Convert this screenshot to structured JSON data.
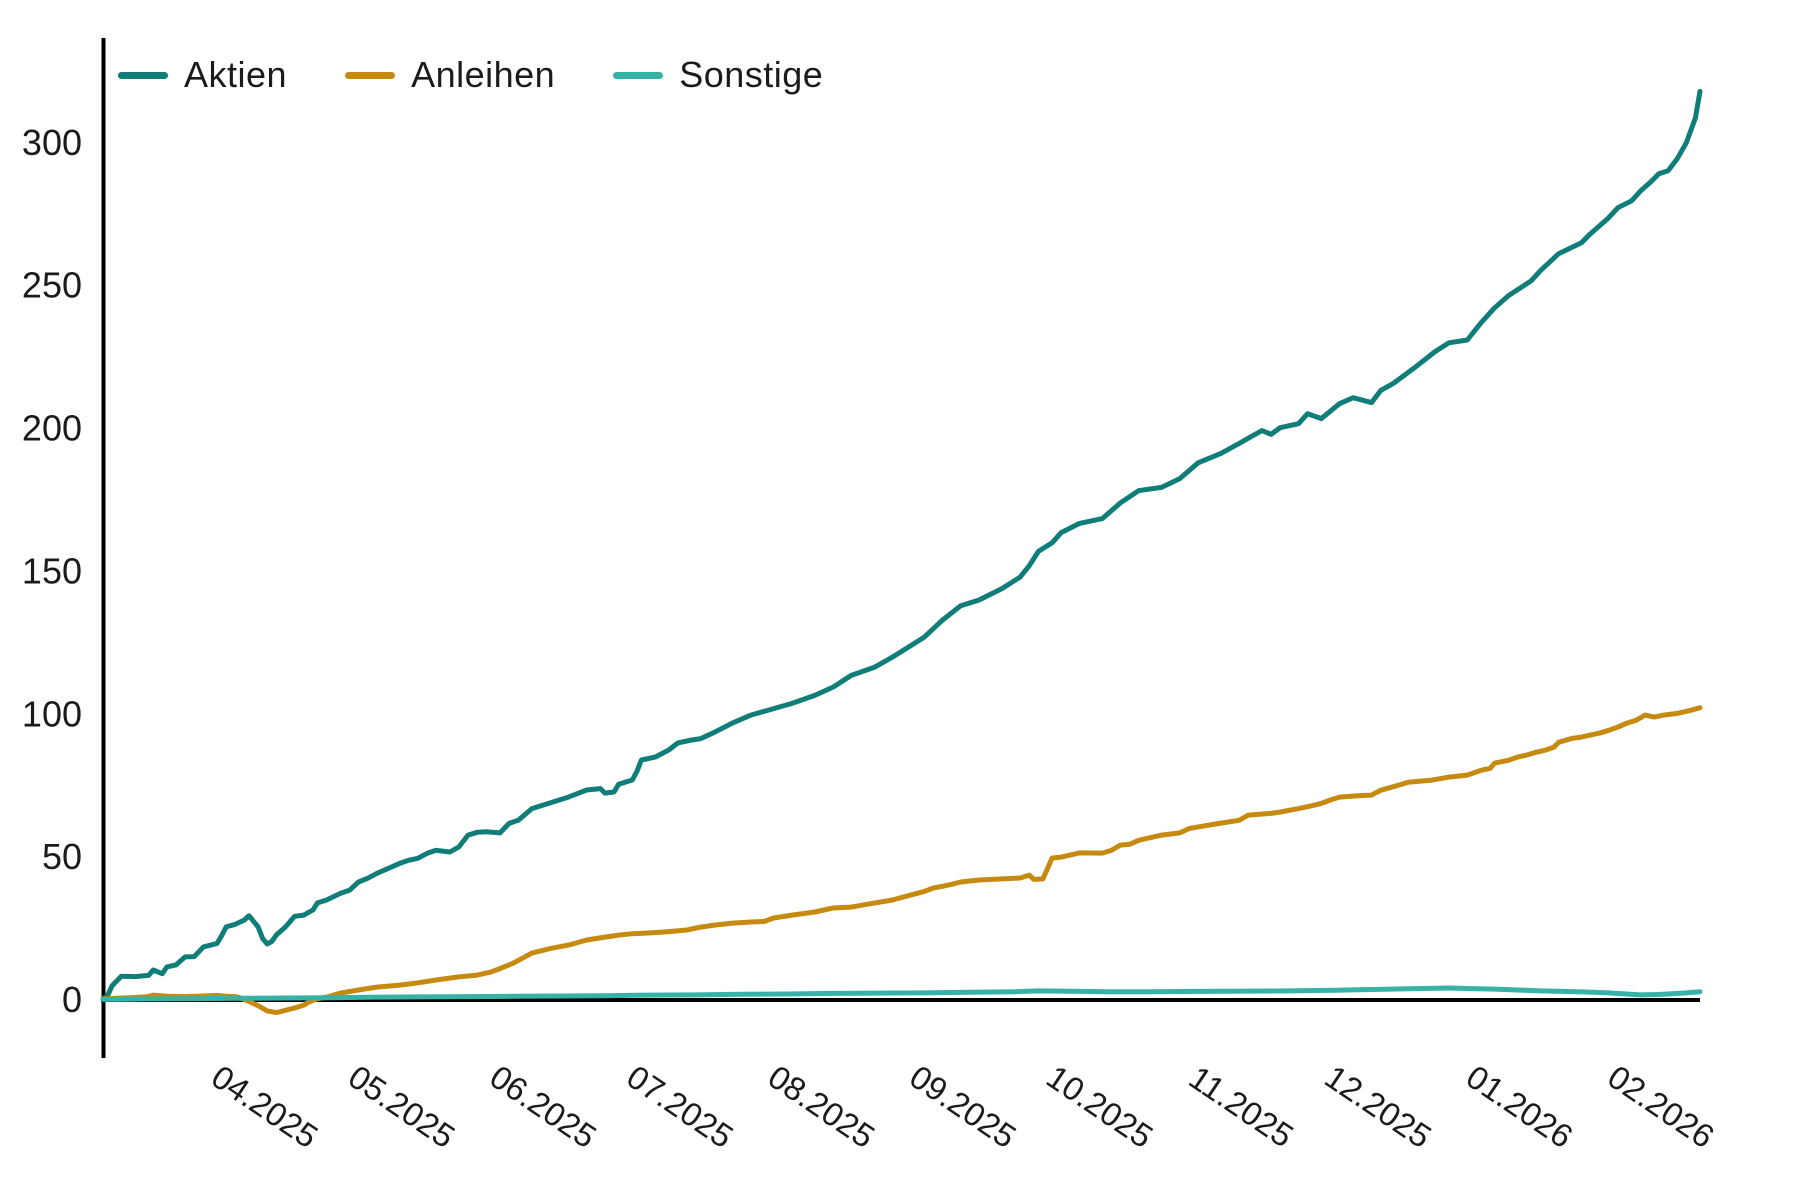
{
  "chart_data": {
    "type": "line",
    "title": "",
    "xlabel": "",
    "ylabel": "",
    "grid": false,
    "legend_position": "top-left",
    "x_unit": "days from start (03.2025)",
    "x_range_days": [
      0,
      350
    ],
    "ylim": [
      -21,
      340
    ],
    "y_ticks": [
      0,
      50,
      100,
      150,
      200,
      250,
      300
    ],
    "x_ticks": [
      {
        "label": "04.2025",
        "day": 31
      },
      {
        "label": "05.2025",
        "day": 61
      },
      {
        "label": "06.2025",
        "day": 92
      },
      {
        "label": "07.2025",
        "day": 122
      },
      {
        "label": "08.2025",
        "day": 153
      },
      {
        "label": "09.2025",
        "day": 184
      },
      {
        "label": "10.2025",
        "day": 214
      },
      {
        "label": "11.2025",
        "day": 245
      },
      {
        "label": "12.2025",
        "day": 275
      },
      {
        "label": "01.2026",
        "day": 306
      },
      {
        "label": "02.2026",
        "day": 337
      }
    ],
    "axis_color": "#000000",
    "series": [
      {
        "name": "Aktien",
        "color": "#107e78",
        "points": [
          [
            0,
            0.5
          ],
          [
            1,
            1.5
          ],
          [
            2,
            5
          ],
          [
            4,
            8.3
          ],
          [
            7,
            8.2
          ],
          [
            10,
            8.6
          ],
          [
            11,
            10.5
          ],
          [
            13,
            9.2
          ],
          [
            14,
            11.6
          ],
          [
            16,
            12.3
          ],
          [
            18,
            15.1
          ],
          [
            20,
            15.2
          ],
          [
            22,
            18.6
          ],
          [
            25,
            19.8
          ],
          [
            26,
            22.5
          ],
          [
            27,
            25.6
          ],
          [
            29,
            26.5
          ],
          [
            31,
            28
          ],
          [
            32,
            29.5
          ],
          [
            33,
            27.5
          ],
          [
            34,
            25.6
          ],
          [
            35,
            21.5
          ],
          [
            36,
            19.6
          ],
          [
            37,
            20.5
          ],
          [
            38,
            22.8
          ],
          [
            40,
            25.6
          ],
          [
            42,
            29.3
          ],
          [
            44,
            29.7
          ],
          [
            46,
            31.5
          ],
          [
            47,
            34
          ],
          [
            49,
            35
          ],
          [
            52,
            37.3
          ],
          [
            54,
            38.4
          ],
          [
            56,
            41.3
          ],
          [
            58,
            42.6
          ],
          [
            60,
            44.3
          ],
          [
            62,
            45.7
          ],
          [
            65,
            47.8
          ],
          [
            67,
            48.9
          ],
          [
            69,
            49.6
          ],
          [
            71,
            51.3
          ],
          [
            73,
            52.4
          ],
          [
            76,
            51.8
          ],
          [
            78,
            53.6
          ],
          [
            80,
            57.7
          ],
          [
            82,
            58.7
          ],
          [
            84,
            58.9
          ],
          [
            87,
            58.5
          ],
          [
            89,
            61.8
          ],
          [
            91,
            62.9
          ],
          [
            94,
            67
          ],
          [
            98,
            69
          ],
          [
            102,
            71
          ],
          [
            106,
            73.5
          ],
          [
            109,
            74
          ],
          [
            110,
            72.4
          ],
          [
            112,
            72.8
          ],
          [
            113,
            75.5
          ],
          [
            116,
            77
          ],
          [
            117,
            80
          ],
          [
            118,
            84
          ],
          [
            121,
            85
          ],
          [
            124,
            87.5
          ],
          [
            126,
            90
          ],
          [
            129,
            91
          ],
          [
            131,
            91.5
          ],
          [
            134,
            93.7
          ],
          [
            138,
            97
          ],
          [
            142,
            99.7
          ],
          [
            147,
            102
          ],
          [
            151,
            103.8
          ],
          [
            156,
            106.6
          ],
          [
            160,
            109.5
          ],
          [
            164,
            113.6
          ],
          [
            169,
            116.4
          ],
          [
            173,
            120
          ],
          [
            177,
            124
          ],
          [
            180,
            127
          ],
          [
            182,
            130
          ],
          [
            184,
            133
          ],
          [
            188,
            138
          ],
          [
            192,
            140
          ],
          [
            197,
            144
          ],
          [
            201,
            148
          ],
          [
            203,
            152
          ],
          [
            205,
            157
          ],
          [
            208,
            160
          ],
          [
            210,
            163.6
          ],
          [
            214,
            166.8
          ],
          [
            219,
            168.5
          ],
          [
            223,
            174
          ],
          [
            227,
            178.3
          ],
          [
            232,
            179.4
          ],
          [
            236,
            182.5
          ],
          [
            240,
            188
          ],
          [
            245,
            191.3
          ],
          [
            249,
            194.8
          ],
          [
            252,
            197.5
          ],
          [
            254,
            199.3
          ],
          [
            256,
            198
          ],
          [
            258,
            200.3
          ],
          [
            262,
            201.7
          ],
          [
            264,
            205.2
          ],
          [
            267,
            203.5
          ],
          [
            271,
            208.7
          ],
          [
            274,
            210.8
          ],
          [
            278,
            209.1
          ],
          [
            280,
            213.3
          ],
          [
            283,
            216
          ],
          [
            288,
            222
          ],
          [
            292,
            227
          ],
          [
            295,
            230
          ],
          [
            299,
            231
          ],
          [
            302,
            237
          ],
          [
            305,
            242.3
          ],
          [
            308,
            246.5
          ],
          [
            313,
            251.7
          ],
          [
            315,
            255.2
          ],
          [
            319,
            261.2
          ],
          [
            324,
            265
          ],
          [
            326,
            268.2
          ],
          [
            330,
            273.8
          ],
          [
            332,
            277.3
          ],
          [
            335,
            279.7
          ],
          [
            337,
            283.2
          ],
          [
            339,
            286
          ],
          [
            341,
            289.2
          ],
          [
            343,
            290.2
          ],
          [
            345,
            294.4
          ],
          [
            347,
            300
          ],
          [
            349,
            308.7
          ],
          [
            350,
            318
          ]
        ]
      },
      {
        "name": "Anleihen",
        "color": "#c68a10",
        "points": [
          [
            0,
            0.3
          ],
          [
            3,
            0.6
          ],
          [
            6,
            0.8
          ],
          [
            10,
            1.2
          ],
          [
            11,
            1.7
          ],
          [
            14,
            1.3
          ],
          [
            18,
            1.2
          ],
          [
            22,
            1.4
          ],
          [
            25,
            1.6
          ],
          [
            27,
            1.3
          ],
          [
            29,
            1.2
          ],
          [
            30,
            0.8
          ],
          [
            32,
            -0.5
          ],
          [
            34,
            -2
          ],
          [
            36,
            -3.8
          ],
          [
            38,
            -4.4
          ],
          [
            40,
            -3.6
          ],
          [
            42,
            -2.8
          ],
          [
            44,
            -1.8
          ],
          [
            45,
            -0.8
          ],
          [
            47,
            0.5
          ],
          [
            49,
            1
          ],
          [
            52,
            2.4
          ],
          [
            56,
            3.5
          ],
          [
            60,
            4.5
          ],
          [
            65,
            5.2
          ],
          [
            69,
            6
          ],
          [
            73,
            7
          ],
          [
            78,
            8.1
          ],
          [
            82,
            8.7
          ],
          [
            85,
            9.8
          ],
          [
            87,
            11
          ],
          [
            90,
            13
          ],
          [
            94,
            16.4
          ],
          [
            98,
            18
          ],
          [
            102,
            19.2
          ],
          [
            106,
            21
          ],
          [
            110,
            22
          ],
          [
            113,
            22.7
          ],
          [
            116,
            23.2
          ],
          [
            119,
            23.4
          ],
          [
            123,
            23.8
          ],
          [
            128,
            24.5
          ],
          [
            131,
            25.5
          ],
          [
            134,
            26.2
          ],
          [
            138,
            26.9
          ],
          [
            142,
            27.3
          ],
          [
            145,
            27.5
          ],
          [
            147,
            28.7
          ],
          [
            151,
            29.7
          ],
          [
            156,
            30.8
          ],
          [
            160,
            32.2
          ],
          [
            164,
            32.5
          ],
          [
            169,
            33.9
          ],
          [
            173,
            35
          ],
          [
            177,
            36.7
          ],
          [
            180,
            38
          ],
          [
            182,
            39.2
          ],
          [
            184,
            39.8
          ],
          [
            186,
            40.5
          ],
          [
            188,
            41.3
          ],
          [
            192,
            42
          ],
          [
            196,
            42.3
          ],
          [
            201,
            42.7
          ],
          [
            203,
            43.7
          ],
          [
            204,
            42.2
          ],
          [
            206,
            42.4
          ],
          [
            207,
            46
          ],
          [
            208,
            49.7
          ],
          [
            210,
            50
          ],
          [
            214,
            51.5
          ],
          [
            219,
            51.4
          ],
          [
            221,
            52.4
          ],
          [
            223,
            54.2
          ],
          [
            225,
            54.5
          ],
          [
            227,
            55.9
          ],
          [
            232,
            57.7
          ],
          [
            236,
            58.5
          ],
          [
            238,
            60
          ],
          [
            240,
            60.6
          ],
          [
            245,
            61.9
          ],
          [
            249,
            62.9
          ],
          [
            251,
            64.7
          ],
          [
            256,
            65.3
          ],
          [
            258,
            65.8
          ],
          [
            262,
            67
          ],
          [
            265,
            68
          ],
          [
            267,
            68.8
          ],
          [
            269,
            70
          ],
          [
            271,
            71
          ],
          [
            275,
            71.5
          ],
          [
            278,
            71.7
          ],
          [
            280,
            73.4
          ],
          [
            284,
            75.2
          ],
          [
            286,
            76.2
          ],
          [
            291,
            76.9
          ],
          [
            295,
            78
          ],
          [
            299,
            78.7
          ],
          [
            302,
            80.4
          ],
          [
            304,
            81.1
          ],
          [
            305,
            82.9
          ],
          [
            308,
            83.9
          ],
          [
            310,
            85
          ],
          [
            312,
            85.7
          ],
          [
            314,
            86.7
          ],
          [
            316,
            87.4
          ],
          [
            318,
            88.5
          ],
          [
            319,
            90.2
          ],
          [
            322,
            91.6
          ],
          [
            324,
            92
          ],
          [
            326,
            92.7
          ],
          [
            328,
            93.4
          ],
          [
            330,
            94.4
          ],
          [
            332,
            95.5
          ],
          [
            334,
            96.9
          ],
          [
            336,
            97.9
          ],
          [
            338,
            99.7
          ],
          [
            340,
            99
          ],
          [
            342,
            99.7
          ],
          [
            345,
            100.3
          ],
          [
            348,
            101.4
          ],
          [
            350,
            102.3
          ]
        ]
      },
      {
        "name": "Sonstige",
        "color": "#36b2a6",
        "points": [
          [
            0,
            0.2
          ],
          [
            10,
            0.4
          ],
          [
            20,
            0.5
          ],
          [
            30,
            0.6
          ],
          [
            40,
            0.7
          ],
          [
            50,
            0.8
          ],
          [
            60,
            1
          ],
          [
            70,
            1.1
          ],
          [
            80,
            1.2
          ],
          [
            90,
            1.3
          ],
          [
            100,
            1.4
          ],
          [
            110,
            1.5
          ],
          [
            120,
            1.7
          ],
          [
            130,
            1.8
          ],
          [
            140,
            2
          ],
          [
            150,
            2.1
          ],
          [
            160,
            2.3
          ],
          [
            170,
            2.4
          ],
          [
            180,
            2.5
          ],
          [
            190,
            2.7
          ],
          [
            200,
            2.9
          ],
          [
            205,
            3.2
          ],
          [
            210,
            3.1
          ],
          [
            215,
            3
          ],
          [
            220,
            2.9
          ],
          [
            230,
            2.9
          ],
          [
            240,
            3
          ],
          [
            250,
            3.1
          ],
          [
            260,
            3.2
          ],
          [
            270,
            3.4
          ],
          [
            275,
            3.6
          ],
          [
            285,
            3.9
          ],
          [
            295,
            4.2
          ],
          [
            300,
            4
          ],
          [
            305,
            3.8
          ],
          [
            310,
            3.5
          ],
          [
            315,
            3.2
          ],
          [
            320,
            3
          ],
          [
            325,
            2.8
          ],
          [
            330,
            2.5
          ],
          [
            333,
            2.2
          ],
          [
            337,
            1.8
          ],
          [
            340,
            1.9
          ],
          [
            343,
            2.1
          ],
          [
            347,
            2.5
          ],
          [
            350,
            2.9
          ]
        ]
      }
    ]
  }
}
